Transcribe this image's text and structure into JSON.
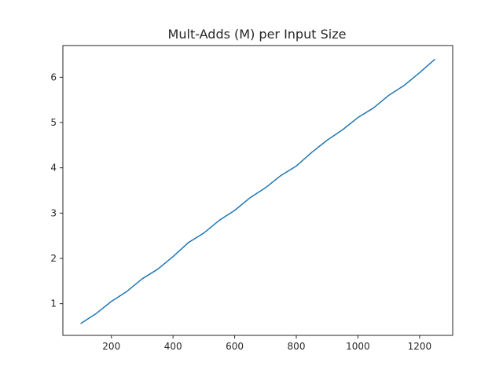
{
  "chart_data": {
    "type": "line",
    "title": "Mult-Adds (M) per Input Size",
    "xlabel": "",
    "ylabel": "",
    "xlim": [
      42.5,
      1307.5
    ],
    "ylim": [
      0.3,
      6.7
    ],
    "xticks": [
      200,
      400,
      600,
      800,
      1000,
      1200
    ],
    "yticks": [
      1,
      2,
      3,
      4,
      5,
      6
    ],
    "grid": false,
    "line_color": "#1f77b4",
    "series": [
      {
        "x": [
          100,
          150,
          200,
          250,
          300,
          350,
          400,
          450,
          500,
          550,
          600,
          650,
          700,
          750,
          800,
          850,
          900,
          950,
          1000,
          1050,
          1100,
          1150,
          1200,
          1250
        ],
        "values": [
          0.56,
          0.78,
          1.05,
          1.27,
          1.55,
          1.76,
          2.04,
          2.35,
          2.56,
          2.84,
          3.06,
          3.34,
          3.56,
          3.83,
          4.04,
          4.34,
          4.61,
          4.84,
          5.11,
          5.32,
          5.6,
          5.82,
          6.1,
          6.4
        ]
      }
    ]
  }
}
